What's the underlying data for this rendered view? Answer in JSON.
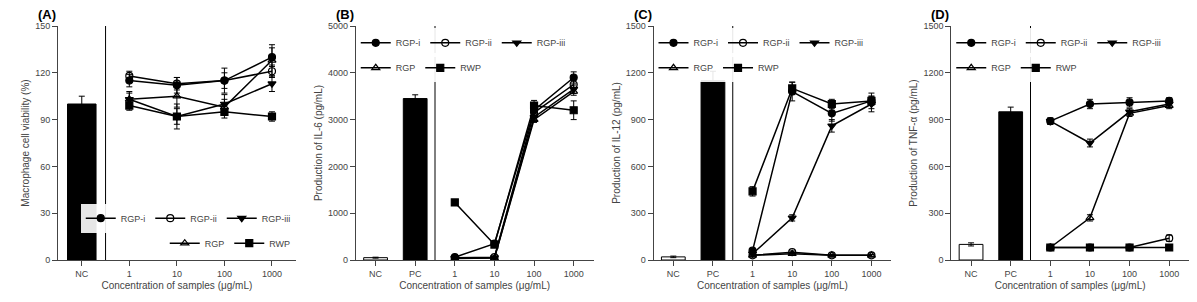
{
  "chart_data": [
    {
      "type": "line",
      "title": "(A)",
      "xlabel": "Concentration of samples (μg/mL)",
      "ylabel": "Macrophage cell viability (%)",
      "categories": [
        "NC",
        "1",
        "10",
        "100",
        "1000"
      ],
      "ylim": [
        0,
        150
      ],
      "yticks": [
        0,
        30,
        60,
        90,
        120,
        150
      ],
      "grid": false,
      "legend": "lower right",
      "series": [
        {
          "type": "bar",
          "color": "black",
          "values": [
            100,
            null,
            null,
            null,
            null
          ],
          "errors": [
            5,
            null,
            null,
            null,
            null
          ]
        },
        {
          "name": "RGP-i",
          "type": "line",
          "color": "black",
          "marker": "circle",
          "values": [
            null,
            115,
            112,
            115,
            130
          ],
          "errors": [
            null,
            4,
            5,
            8,
            6
          ]
        },
        {
          "name": "RGP-ii",
          "type": "line",
          "color": "black",
          "marker": "circle-open",
          "values": [
            null,
            118,
            113,
            115,
            121
          ],
          "errors": [
            null,
            3,
            4,
            5,
            4
          ]
        },
        {
          "name": "RGP-iii",
          "type": "line",
          "color": "black",
          "marker": "triangle-down",
          "values": [
            null,
            103,
            92,
            100,
            113
          ],
          "errors": [
            null,
            4,
            8,
            6,
            5
          ]
        },
        {
          "name": "RGP",
          "type": "line",
          "color": "black",
          "marker": "triangle-up-open",
          "values": [
            null,
            103,
            105,
            98,
            128
          ],
          "errors": [
            null,
            5,
            7,
            5,
            10
          ]
        },
        {
          "name": "RWP",
          "type": "line",
          "color": "black",
          "marker": "square",
          "values": [
            null,
            99,
            92,
            95,
            92
          ],
          "errors": [
            null,
            3,
            5,
            4,
            3
          ]
        }
      ]
    },
    {
      "type": "line",
      "title": "(B)",
      "xlabel": "Concentration of samples (μg/mL)",
      "ylabel": "Production of IL-6 (pg/mL)",
      "categories": [
        "NC",
        "PC",
        "1",
        "10",
        "100",
        "1000"
      ],
      "ylim": [
        0,
        5000
      ],
      "yticks": [
        0,
        1000,
        2000,
        3000,
        4000,
        5000
      ],
      "grid": false,
      "legend": "upper left",
      "series": [
        {
          "type": "bar",
          "color": "white",
          "values": [
            50,
            null,
            null,
            null,
            null,
            null
          ],
          "errors": [
            10,
            null,
            null,
            null,
            null,
            null
          ]
        },
        {
          "type": "bar",
          "color": "black",
          "values": [
            null,
            3450,
            null,
            null,
            null,
            null
          ],
          "errors": [
            null,
            80,
            null,
            null,
            null,
            null
          ]
        },
        {
          "name": "RGP-i",
          "type": "line",
          "color": "black",
          "marker": "circle",
          "values": [
            null,
            null,
            60,
            350,
            3200,
            3900
          ],
          "errors": [
            null,
            null,
            15,
            50,
            100,
            120
          ]
        },
        {
          "name": "RGP-ii",
          "type": "line",
          "color": "black",
          "marker": "circle-open",
          "values": [
            null,
            null,
            50,
            60,
            3150,
            3750
          ],
          "errors": [
            null,
            null,
            10,
            10,
            80,
            100
          ]
        },
        {
          "name": "RGP-iii",
          "type": "line",
          "color": "black",
          "marker": "triangle-down",
          "values": [
            null,
            null,
            40,
            50,
            3050,
            3650
          ],
          "errors": [
            null,
            null,
            8,
            8,
            70,
            90
          ]
        },
        {
          "name": "RGP",
          "type": "line",
          "color": "black",
          "marker": "triangle-up-open",
          "values": [
            null,
            null,
            30,
            40,
            3000,
            3600
          ],
          "errors": [
            null,
            null,
            6,
            6,
            60,
            80
          ]
        },
        {
          "name": "RWP",
          "type": "line",
          "color": "black",
          "marker": "square",
          "values": [
            null,
            null,
            1230,
            330,
            3300,
            3200
          ],
          "errors": [
            null,
            null,
            50,
            40,
            110,
            200
          ]
        }
      ]
    },
    {
      "type": "line",
      "title": "(C)",
      "xlabel": "Concentration of samples (μg/mL)",
      "ylabel": "Production of IL-12 (pg/mL)",
      "categories": [
        "NC",
        "PC",
        "1",
        "10",
        "100",
        "1000"
      ],
      "ylim": [
        0,
        1500
      ],
      "yticks": [
        0,
        300,
        600,
        900,
        1200,
        1500
      ],
      "grid": false,
      "legend": "upper left",
      "series": [
        {
          "type": "bar",
          "color": "white",
          "values": [
            20,
            null,
            null,
            null,
            null,
            null
          ],
          "errors": [
            5,
            null,
            null,
            null,
            null,
            null
          ]
        },
        {
          "type": "bar",
          "color": "black",
          "values": [
            null,
            1150,
            null,
            null,
            null,
            null
          ],
          "errors": [
            null,
            60,
            null,
            null,
            null,
            null
          ]
        },
        {
          "name": "RGP-i",
          "type": "line",
          "color": "black",
          "marker": "circle",
          "values": [
            null,
            null,
            60,
            1080,
            940,
            1020
          ],
          "errors": [
            null,
            null,
            10,
            60,
            50,
            50
          ]
        },
        {
          "name": "RGP-ii",
          "type": "line",
          "color": "black",
          "marker": "circle-open",
          "values": [
            null,
            null,
            30,
            50,
            30,
            30
          ],
          "errors": [
            null,
            null,
            6,
            8,
            6,
            6
          ]
        },
        {
          "name": "RGP-iii",
          "type": "line",
          "color": "black",
          "marker": "triangle-down",
          "values": [
            null,
            null,
            40,
            270,
            860,
            1000
          ],
          "errors": [
            null,
            null,
            8,
            20,
            40,
            50
          ]
        },
        {
          "name": "RGP",
          "type": "line",
          "color": "black",
          "marker": "triangle-up-open",
          "values": [
            null,
            null,
            30,
            40,
            30,
            30
          ],
          "errors": [
            null,
            null,
            6,
            6,
            6,
            6
          ]
        },
        {
          "name": "RWP",
          "type": "line",
          "color": "black",
          "marker": "square",
          "values": [
            null,
            null,
            440,
            1100,
            1000,
            1020
          ],
          "errors": [
            null,
            null,
            30,
            40,
            30,
            30
          ]
        }
      ]
    },
    {
      "type": "line",
      "title": "(D)",
      "xlabel": "Concentration of samples (μg/mL)",
      "ylabel": "Production of TNF-α (pg/mL)",
      "categories": [
        "NC",
        "PC",
        "1",
        "10",
        "100",
        "1000"
      ],
      "ylim": [
        0,
        1500
      ],
      "yticks": [
        0,
        300,
        600,
        900,
        1200,
        1500
      ],
      "grid": false,
      "legend": "upper left",
      "series": [
        {
          "type": "bar",
          "color": "white",
          "values": [
            100,
            null,
            null,
            null,
            null,
            null
          ],
          "errors": [
            10,
            null,
            null,
            null,
            null,
            null
          ]
        },
        {
          "type": "bar",
          "color": "black",
          "values": [
            null,
            950,
            null,
            null,
            null,
            null
          ],
          "errors": [
            null,
            30,
            null,
            null,
            null,
            null
          ]
        },
        {
          "name": "RGP-i",
          "type": "line",
          "color": "black",
          "marker": "circle",
          "values": [
            null,
            null,
            890,
            1000,
            1010,
            1020
          ],
          "errors": [
            null,
            null,
            20,
            30,
            30,
            20
          ]
        },
        {
          "name": "RGP-ii",
          "type": "line",
          "color": "black",
          "marker": "circle-open",
          "values": [
            null,
            null,
            80,
            80,
            80,
            140
          ],
          "errors": [
            null,
            null,
            10,
            10,
            10,
            20
          ]
        },
        {
          "name": "RGP-iii",
          "type": "line",
          "color": "black",
          "marker": "triangle-down",
          "values": [
            null,
            null,
            890,
            750,
            950,
            1000
          ],
          "errors": [
            null,
            null,
            20,
            25,
            20,
            20
          ]
        },
        {
          "name": "RGP",
          "type": "line",
          "color": "black",
          "marker": "triangle-up-open",
          "values": [
            null,
            null,
            80,
            270,
            940,
            990
          ],
          "errors": [
            null,
            null,
            10,
            20,
            20,
            20
          ]
        },
        {
          "name": "RWP",
          "type": "line",
          "color": "black",
          "marker": "square",
          "values": [
            null,
            null,
            80,
            80,
            80,
            80
          ],
          "errors": [
            null,
            null,
            8,
            8,
            8,
            8
          ]
        }
      ]
    }
  ]
}
